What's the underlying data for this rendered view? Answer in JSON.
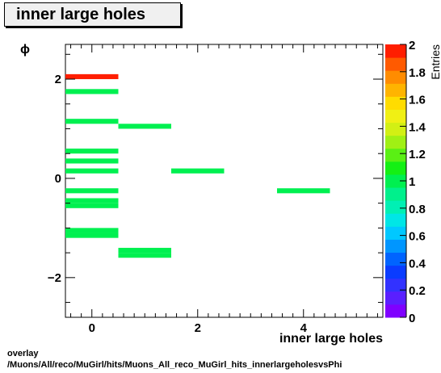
{
  "title": "inner large holes",
  "footer": {
    "line1": "overlay",
    "line2": "/Muons/All/reco/MuGirl/hits/Muons_All_reco_MuGirl_hits_innerlargeholesvsPhi"
  },
  "chart_data": {
    "type": "heatmap",
    "xlabel": "inner large holes",
    "ylabel": "ϕ",
    "zlabel": "Entries",
    "xlim": [
      -0.5,
      5.5
    ],
    "ylim": [
      -2.8,
      2.7
    ],
    "zlim": [
      0,
      2
    ],
    "x_ticks": [
      0,
      2,
      4
    ],
    "y_ticks": [
      -2,
      0,
      2
    ],
    "z_ticks": [
      "0",
      "0.2",
      "0.4",
      "0.6",
      "0.8",
      "1",
      "1.2",
      "1.4",
      "1.6",
      "1.8",
      "2"
    ],
    "bin_height": 0.1,
    "bins": [
      {
        "x": 0,
        "y": 2.05,
        "entries": 2
      },
      {
        "x": 0,
        "y": 1.75,
        "entries": 1
      },
      {
        "x": 0,
        "y": 1.15,
        "entries": 1
      },
      {
        "x": 1,
        "y": 1.05,
        "entries": 1
      },
      {
        "x": 0,
        "y": 0.55,
        "entries": 1
      },
      {
        "x": 0,
        "y": 0.35,
        "entries": 1
      },
      {
        "x": 0,
        "y": 0.15,
        "entries": 1
      },
      {
        "x": 2,
        "y": 0.15,
        "entries": 1
      },
      {
        "x": 0,
        "y": -0.25,
        "entries": 1
      },
      {
        "x": 4,
        "y": -0.25,
        "entries": 1
      },
      {
        "x": 0,
        "y": -0.45,
        "entries": 1
      },
      {
        "x": 0,
        "y": -0.55,
        "entries": 1
      },
      {
        "x": 0,
        "y": -1.05,
        "entries": 1
      },
      {
        "x": 0,
        "y": -1.15,
        "entries": 1
      },
      {
        "x": 1,
        "y": -1.45,
        "entries": 1
      },
      {
        "x": 1,
        "y": -1.55,
        "entries": 1
      }
    ],
    "palette": [
      "#7f00ff",
      "#5a1fff",
      "#3232ff",
      "#0a3cff",
      "#0064ff",
      "#0096ff",
      "#00c8ff",
      "#00e6e6",
      "#00f0b4",
      "#00f08c",
      "#00f050",
      "#14f014",
      "#5af014",
      "#a0f014",
      "#d2f014",
      "#f0f014",
      "#ffdc00",
      "#ffb400",
      "#ff8c00",
      "#ff5a00",
      "#ff1e00"
    ]
  }
}
